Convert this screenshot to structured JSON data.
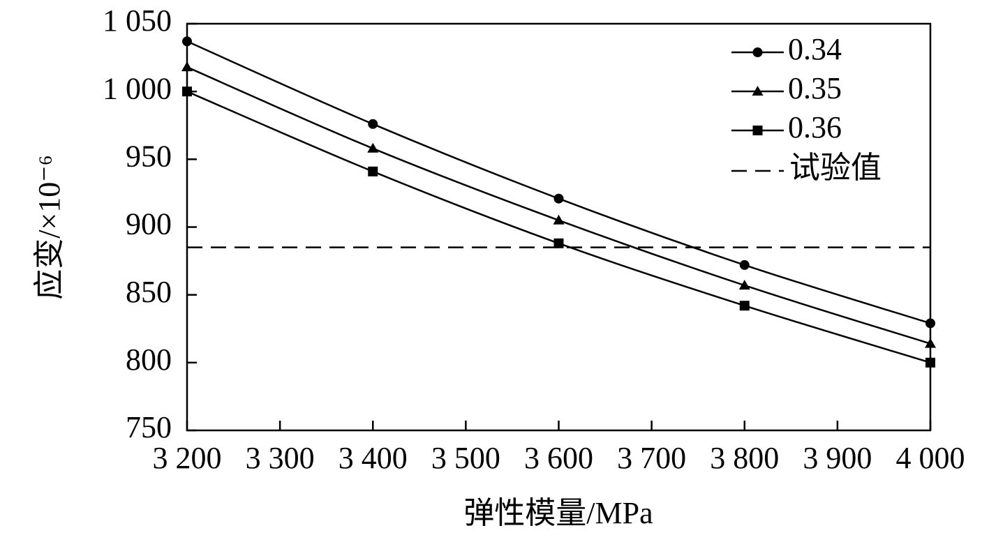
{
  "chart_data": {
    "type": "line",
    "xlabel": "弹性模量/MPa",
    "ylabel": "应变/×10⁻⁶",
    "x": [
      3200,
      3400,
      3600,
      3800,
      4000
    ],
    "series": [
      {
        "name": "0.34",
        "color": "#000000",
        "marker": "circle",
        "values": [
          1037,
          976,
          921,
          872,
          829
        ]
      },
      {
        "name": "0.35",
        "color": "#000000",
        "marker": "triangle",
        "values": [
          1018,
          958,
          905,
          857,
          814
        ]
      },
      {
        "name": "0.36",
        "color": "#000000",
        "marker": "square",
        "values": [
          1000,
          941,
          888,
          842,
          800
        ]
      }
    ],
    "reference": {
      "name": "试验值",
      "value": 885,
      "color": "#000000"
    },
    "xlim": [
      3200,
      4000
    ],
    "xticks": [
      {
        "value": 3200,
        "label": "3 200"
      },
      {
        "value": 3300,
        "label": "3 300"
      },
      {
        "value": 3400,
        "label": "3 400"
      },
      {
        "value": 3500,
        "label": "3 500"
      },
      {
        "value": 3600,
        "label": "3 600"
      },
      {
        "value": 3700,
        "label": "3 700"
      },
      {
        "value": 3800,
        "label": "3 800"
      },
      {
        "value": 3900,
        "label": "3 900"
      },
      {
        "value": 4000,
        "label": "4 000"
      }
    ],
    "ylim": [
      750,
      1050
    ],
    "yticks": [
      750,
      800,
      850,
      900,
      950,
      {
        "value": 1000,
        "label": "1 000"
      },
      {
        "value": 1050,
        "label": "1 050"
      }
    ],
    "grid": false,
    "legend": "upper right"
  }
}
